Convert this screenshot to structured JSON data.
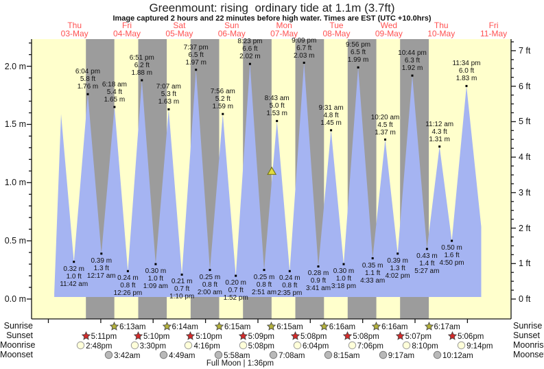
{
  "page": {
    "title": "Greenmount: rising  ordinary tide at 1.1m (3.7ft)",
    "subtitle": "Image captured 2 hours and 22 minutes before high water. Times are EST (UTC +10.0hrs)"
  },
  "colors": {
    "day_band": "#ffffcc",
    "night_band": "#9c9c9c",
    "tide_fill": "#a5b4f2",
    "day_label_red": "#ff5050",
    "axis_black": "#111111",
    "sunrise_star": "#b5b23c",
    "sunset_star": "#d42a2a",
    "moonrise_circle": "#ffffd9",
    "moonset_circle": "#b9b9b9",
    "current_marker_yellow": "#e3dc3e"
  },
  "chart_data": {
    "type": "area",
    "title": "Greenmount: rising  ordinary tide at 1.1m (3.7ft)",
    "subtitle": "Image captured 2 hours and 22 minutes before high water. Times are EST (UTC +10.0hrs)",
    "ylabel_left_unit": "m",
    "ylabel_right_unit": "ft",
    "ylim_m": [
      0,
      2.2
    ],
    "grid": false,
    "days": [
      {
        "weekday": "Thu",
        "date": "03-May",
        "noon_t": 12
      },
      {
        "weekday": "Fri",
        "date": "04-May",
        "noon_t": 36
      },
      {
        "weekday": "Sat",
        "date": "05-May",
        "noon_t": 60
      },
      {
        "weekday": "Sun",
        "date": "06-May",
        "noon_t": 84
      },
      {
        "weekday": "Mon",
        "date": "07-May",
        "noon_t": 108
      },
      {
        "weekday": "Tue",
        "date": "08-May",
        "noon_t": 132
      },
      {
        "weekday": "Wed",
        "date": "09-May",
        "noon_t": 156
      },
      {
        "weekday": "Thu",
        "date": "10-May",
        "noon_t": 180
      },
      {
        "weekday": "Fri",
        "date": "11-May",
        "noon_t": 204
      }
    ],
    "y_left_majors": [
      {
        "v": 0.0,
        "label": "0.0 m"
      },
      {
        "v": 0.5,
        "label": "0.5 m"
      },
      {
        "v": 1.0,
        "label": "1.0 m"
      },
      {
        "v": 1.5,
        "label": "1.5 m"
      },
      {
        "v": 2.0,
        "label": "2.0 m"
      }
    ],
    "y_right_majors": [
      {
        "ft": 0,
        "label": "0 ft"
      },
      {
        "ft": 1,
        "label": "1 ft"
      },
      {
        "ft": 2,
        "label": "2 ft"
      },
      {
        "ft": 3,
        "label": "3 ft"
      },
      {
        "ft": 4,
        "label": "4 ft"
      },
      {
        "ft": 5,
        "label": "5 ft"
      },
      {
        "ft": 6,
        "label": "6 ft"
      },
      {
        "ft": 7,
        "label": "7 ft"
      }
    ],
    "night_bands": [
      [
        17.18,
        30.22
      ],
      [
        41.17,
        54.23
      ],
      [
        65.17,
        78.25
      ],
      [
        89.15,
        102.25
      ],
      [
        113.13,
        126.27
      ],
      [
        137.13,
        150.27
      ],
      [
        161.12,
        174.28
      ]
    ],
    "curve_start": {
      "t": 2.7,
      "m": 0.05
    },
    "curve_end": {
      "t": 198.3,
      "m": 0.62
    },
    "tide_extremes": [
      {
        "type": "high",
        "t": 5.8,
        "m": 1.59,
        "labels": null
      },
      {
        "type": "low",
        "t": 11.7,
        "m": 0.32,
        "labels": [
          "0.32 m",
          "1.0 ft",
          "11:42 am"
        ]
      },
      {
        "type": "high",
        "t": 18.07,
        "m": 1.76,
        "labels": [
          "6:04 pm",
          "5.8 ft",
          "1.76 m"
        ]
      },
      {
        "type": "low",
        "t": 24.28,
        "m": 0.39,
        "labels": [
          "0.39 m",
          "1.3 ft",
          "12:17 am"
        ]
      },
      {
        "type": "high",
        "t": 30.3,
        "m": 1.65,
        "labels": [
          "6:18 am",
          "5.4 ft",
          "1.65 m"
        ]
      },
      {
        "type": "low",
        "t": 36.43,
        "m": 0.24,
        "labels": [
          "0.24 m",
          "0.8 ft",
          "12:26 pm"
        ]
      },
      {
        "type": "high",
        "t": 42.85,
        "m": 1.88,
        "labels": [
          "6:51 pm",
          "6.2 ft",
          "1.88 m"
        ]
      },
      {
        "type": "low",
        "t": 49.15,
        "m": 0.3,
        "labels": [
          "0.30 m",
          "1.0 ft",
          "1:09 am"
        ]
      },
      {
        "type": "high",
        "t": 55.12,
        "m": 1.63,
        "labels": [
          "7:07 am",
          "5.3 ft",
          "1.63 m"
        ]
      },
      {
        "type": "low",
        "t": 61.17,
        "m": 0.21,
        "labels": [
          "0.21 m",
          "0.7 ft",
          "1:10 pm"
        ]
      },
      {
        "type": "high",
        "t": 67.62,
        "m": 1.97,
        "labels": [
          "7:37 pm",
          "6.5 ft",
          "1.97 m"
        ]
      },
      {
        "type": "low",
        "t": 74.0,
        "m": 0.25,
        "labels": [
          "0.25 m",
          "0.8 ft",
          "2:00 am"
        ]
      },
      {
        "type": "high",
        "t": 79.93,
        "m": 1.59,
        "labels": [
          "7:56 am",
          "5.2 ft",
          "1.59 m"
        ]
      },
      {
        "type": "low",
        "t": 85.87,
        "m": 0.2,
        "labels": [
          "0.20 m",
          "0.7 ft",
          "1:52 pm"
        ]
      },
      {
        "type": "high",
        "t": 92.38,
        "m": 2.02,
        "labels": [
          "8:23 pm",
          "6.6 ft",
          "2.02 m"
        ]
      },
      {
        "type": "low",
        "t": 98.85,
        "m": 0.25,
        "labels": [
          "0.25 m",
          "0.8 ft",
          "2:51 am"
        ]
      },
      {
        "type": "high",
        "t": 104.72,
        "m": 1.53,
        "labels": [
          "8:43 am",
          "5.0 ft",
          "1.53 m"
        ]
      },
      {
        "type": "low",
        "t": 110.58,
        "m": 0.24,
        "labels": [
          "0.24 m",
          "0.8 ft",
          "2:35 pm"
        ]
      },
      {
        "type": "high",
        "t": 117.15,
        "m": 2.03,
        "labels": [
          "9:09 pm",
          "6.7 ft",
          "2.03 m"
        ]
      },
      {
        "type": "low",
        "t": 123.68,
        "m": 0.28,
        "labels": [
          "0.28 m",
          "0.9 ft",
          "3:41 am"
        ]
      },
      {
        "type": "high",
        "t": 129.52,
        "m": 1.45,
        "labels": [
          "9:31 am",
          "4.8 ft",
          "1.45 m"
        ]
      },
      {
        "type": "low",
        "t": 135.3,
        "m": 0.3,
        "labels": [
          "0.30 m",
          "1.0 ft",
          "3:18 pm"
        ]
      },
      {
        "type": "high",
        "t": 141.93,
        "m": 1.99,
        "labels": [
          "9:56 pm",
          "6.5 ft",
          "1.99 m"
        ]
      },
      {
        "type": "low",
        "t": 148.55,
        "m": 0.35,
        "labels": [
          "0.35 m",
          "1.1 ft",
          "4:33 am"
        ]
      },
      {
        "type": "high",
        "t": 154.33,
        "m": 1.37,
        "labels": [
          "10:20 am",
          "4.5 ft",
          "1.37 m"
        ]
      },
      {
        "type": "low",
        "t": 160.03,
        "m": 0.39,
        "labels": [
          "0.39 m",
          "1.3 ft",
          "4:02 pm"
        ]
      },
      {
        "type": "high",
        "t": 166.73,
        "m": 1.92,
        "labels": [
          "10:44 pm",
          "6.3 ft",
          "1.92 m"
        ]
      },
      {
        "type": "low",
        "t": 173.45,
        "m": 0.43,
        "labels": [
          "0.43 m",
          "1.4 ft",
          "5:27 am"
        ]
      },
      {
        "type": "high",
        "t": 179.2,
        "m": 1.31,
        "labels": [
          "11:12 am",
          "4.3 ft",
          "1.31 m"
        ]
      },
      {
        "type": "low",
        "t": 184.83,
        "m": 0.5,
        "labels": [
          "0.50 m",
          "1.6 ft",
          "4:50 pm"
        ]
      },
      {
        "type": "high",
        "t": 191.57,
        "m": 1.83,
        "labels": [
          "11:34 pm",
          "6.0 ft",
          "1.83 m"
        ]
      }
    ],
    "current_marker": {
      "t": 102.35,
      "m": 1.1
    }
  },
  "astro": {
    "row_labels": {
      "sunrise": "Sunrise",
      "sunset": "Sunset",
      "moonrise": "Moonrise",
      "moonset": "Moonset"
    },
    "sunrise": [
      {
        "t": 30.22,
        "label": "6:13am"
      },
      {
        "t": 54.23,
        "label": "6:14am"
      },
      {
        "t": 78.25,
        "label": "6:15am"
      },
      {
        "t": 102.25,
        "label": "6:15am"
      },
      {
        "t": 126.27,
        "label": "6:16am"
      },
      {
        "t": 150.27,
        "label": "6:16am"
      },
      {
        "t": 174.28,
        "label": "6:17am"
      }
    ],
    "sunset": [
      {
        "t": 17.18,
        "label": "5:11pm"
      },
      {
        "t": 41.17,
        "label": "5:10pm"
      },
      {
        "t": 65.17,
        "label": "5:10pm"
      },
      {
        "t": 89.15,
        "label": "5:09pm"
      },
      {
        "t": 113.13,
        "label": "5:08pm"
      },
      {
        "t": 137.13,
        "label": "5:08pm"
      },
      {
        "t": 161.12,
        "label": "5:07pm"
      },
      {
        "t": 185.1,
        "label": "5:06pm"
      }
    ],
    "moonrise": [
      {
        "t": 14.8,
        "label": "2:48pm"
      },
      {
        "t": 39.5,
        "label": "3:30pm"
      },
      {
        "t": 64.27,
        "label": "4:16pm"
      },
      {
        "t": 89.13,
        "label": "5:08pm"
      },
      {
        "t": 114.07,
        "label": "6:04pm"
      },
      {
        "t": 139.1,
        "label": "7:06pm"
      },
      {
        "t": 164.17,
        "label": "8:10pm"
      },
      {
        "t": 189.23,
        "label": "9:14pm"
      }
    ],
    "moonset": [
      {
        "t": 27.7,
        "label": "3:42am"
      },
      {
        "t": 52.82,
        "label": "4:49am"
      },
      {
        "t": 77.97,
        "label": "5:58am"
      },
      {
        "t": 103.13,
        "label": "7:08am"
      },
      {
        "t": 128.25,
        "label": "8:15am"
      },
      {
        "t": 153.28,
        "label": "9:17am"
      },
      {
        "t": 178.2,
        "label": "10:12am"
      }
    ],
    "moon_phase": "Full Moon | 1:36pm"
  }
}
